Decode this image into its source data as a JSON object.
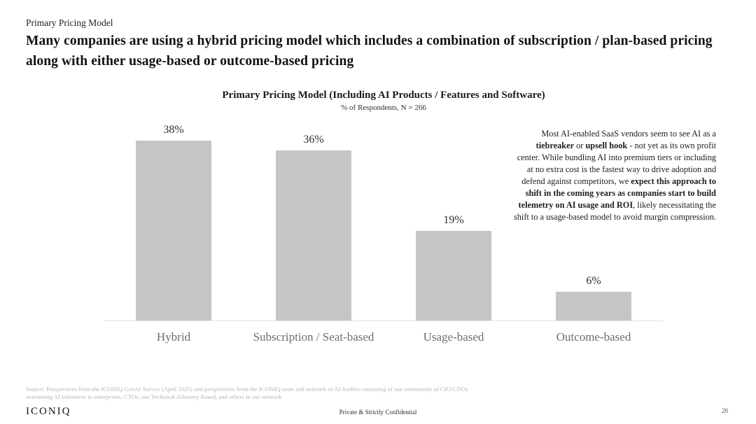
{
  "slide": {
    "eyebrow": "Primary Pricing Model",
    "headline": "Many companies are using a hybrid pricing model which includes a combination of subscription / plan-based pricing along with either usage-based or outcome-based pricing"
  },
  "chart_data": {
    "type": "bar",
    "title": "Primary Pricing Model (Including AI Products / Features and Software)",
    "subtitle": "% of Respondents, N = 266",
    "categories": [
      "Hybrid",
      "Subscription / Seat-based",
      "Usage-based",
      "Outcome-based"
    ],
    "values": [
      38,
      36,
      19,
      6
    ],
    "value_labels": [
      "38%",
      "36%",
      "19%",
      "6%"
    ],
    "ylim": [
      0,
      40
    ],
    "bar_color": "#c5c5c5",
    "axis_line_color": "#e3e3e3",
    "grid": false,
    "legend": false,
    "orientation": "vertical"
  },
  "annotation": {
    "segments": [
      {
        "text": "Most AI-enabled SaaS vendors seem to see AI as a ",
        "bold": false
      },
      {
        "text": "tiebreaker",
        "bold": true
      },
      {
        "text": " or ",
        "bold": false
      },
      {
        "text": "upsell hook",
        "bold": true
      },
      {
        "text": " - not yet as its own profit center. While bundling AI into premium tiers or including at no extra cost is the fastest way to drive adoption and defend against competitors, we ",
        "bold": false
      },
      {
        "text": "expect this approach to shift in the coming years as companies start to build telemetry on AI usage and ROI",
        "bold": true
      },
      {
        "text": ", likely necessitating the shift to a usage-based model to avoid margin compression.",
        "bold": false
      }
    ]
  },
  "footer": {
    "source": "Source: Perspectives from the ICONIQ GenAI Survey (April 2025) and perspectives from the ICONIQ team and network of AI leaders consisting of our community of CIO/CDOs overseeing AI initiatives in enterprises, CTOs, our Technical Advisory Board, and others in our network",
    "logo": "ICONIQ",
    "confidential": "Private & Strictly Confidential",
    "page_number": "20"
  }
}
